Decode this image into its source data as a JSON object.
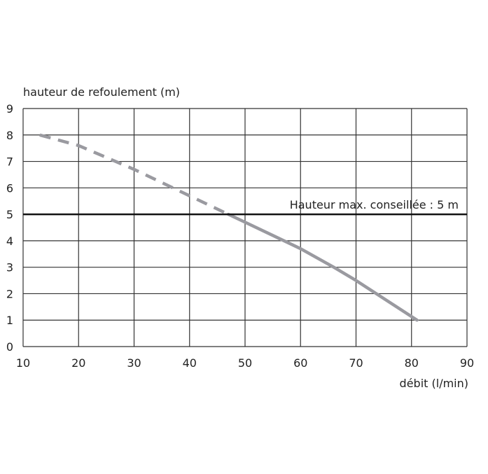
{
  "chart_data": {
    "type": "line",
    "xlabel": "débit (l/min)",
    "ylabel": "hauteur de refoulement (m)",
    "xlim": [
      10,
      90
    ],
    "ylim": [
      0,
      9
    ],
    "x_ticks": [
      "10",
      "20",
      "30",
      "40",
      "50",
      "60",
      "70",
      "80",
      "90"
    ],
    "y_ticks": [
      "0",
      "1",
      "2",
      "3",
      "4",
      "5",
      "6",
      "7",
      "8",
      "9"
    ],
    "grid": true,
    "colors": {
      "curve": "#9a9aa0",
      "reference": "#111111",
      "grid": "#333333"
    },
    "series": [
      {
        "style": "dashed",
        "x": [
          13,
          20,
          30,
          40,
          47
        ],
        "y": [
          8.0,
          7.6,
          6.7,
          5.7,
          5.0
        ]
      },
      {
        "style": "solid",
        "x": [
          47,
          50,
          60,
          66,
          70,
          81
        ],
        "y": [
          5.0,
          4.7,
          3.7,
          3.0,
          2.5,
          1.0
        ]
      }
    ],
    "reference_line": {
      "y": 5,
      "label": "Hauteur max. conseillée : 5 m"
    }
  }
}
